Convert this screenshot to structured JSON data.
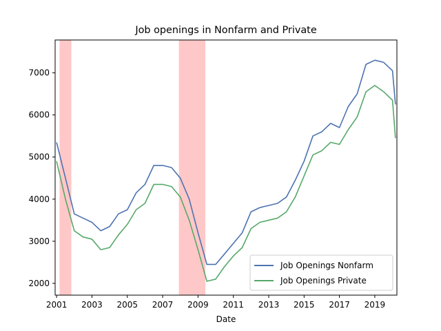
{
  "chart_data": {
    "type": "line",
    "title": "Job openings in Nonfarm and Private",
    "xlabel": "Date",
    "ylabel": "",
    "xlim": [
      "2000-12",
      "2020-04"
    ],
    "ylim": [
      1720,
      7780
    ],
    "x_ticks": [
      "2001",
      "2003",
      "2005",
      "2007",
      "2009",
      "2011",
      "2013",
      "2015",
      "2017",
      "2019"
    ],
    "y_ticks": [
      2000,
      3000,
      4000,
      5000,
      6000,
      7000
    ],
    "grid": false,
    "legend_position": "lower right",
    "recession_shading": [
      {
        "start": "2001-03",
        "end": "2001-11",
        "color": "#ffc8c8"
      },
      {
        "start": "2007-12",
        "end": "2009-06",
        "color": "#ffc8c8"
      }
    ],
    "x": [
      "2001-01",
      "2001-07",
      "2002-01",
      "2002-07",
      "2003-01",
      "2003-07",
      "2004-01",
      "2004-07",
      "2005-01",
      "2005-07",
      "2006-01",
      "2006-07",
      "2007-01",
      "2007-07",
      "2008-01",
      "2008-07",
      "2009-01",
      "2009-07",
      "2010-01",
      "2010-07",
      "2011-01",
      "2011-07",
      "2012-01",
      "2012-07",
      "2013-01",
      "2013-07",
      "2014-01",
      "2014-07",
      "2015-01",
      "2015-07",
      "2016-01",
      "2016-07",
      "2017-01",
      "2017-07",
      "2018-01",
      "2018-07",
      "2019-01",
      "2019-07",
      "2020-01",
      "2020-03"
    ],
    "series": [
      {
        "name": "Job Openings Nonfarm",
        "color": "#4c72b0",
        "values": [
          5350,
          4500,
          3650,
          3550,
          3450,
          3250,
          3350,
          3650,
          3750,
          4150,
          4350,
          4800,
          4800,
          4750,
          4500,
          4000,
          3200,
          2450,
          2450,
          2700,
          2950,
          3200,
          3700,
          3800,
          3850,
          3900,
          4050,
          4450,
          4900,
          5500,
          5600,
          5800,
          5700,
          6200,
          6500,
          7200,
          7300,
          7250,
          7050,
          6250
        ]
      },
      {
        "name": "Job Openings Private",
        "color": "#55a868",
        "values": [
          4900,
          4000,
          3250,
          3100,
          3050,
          2800,
          2850,
          3150,
          3400,
          3750,
          3900,
          4350,
          4350,
          4300,
          4050,
          3500,
          2800,
          2050,
          2100,
          2400,
          2650,
          2850,
          3300,
          3450,
          3500,
          3550,
          3700,
          4050,
          4550,
          5050,
          5150,
          5350,
          5300,
          5650,
          5950,
          6550,
          6700,
          6550,
          6350,
          5450
        ]
      }
    ]
  }
}
